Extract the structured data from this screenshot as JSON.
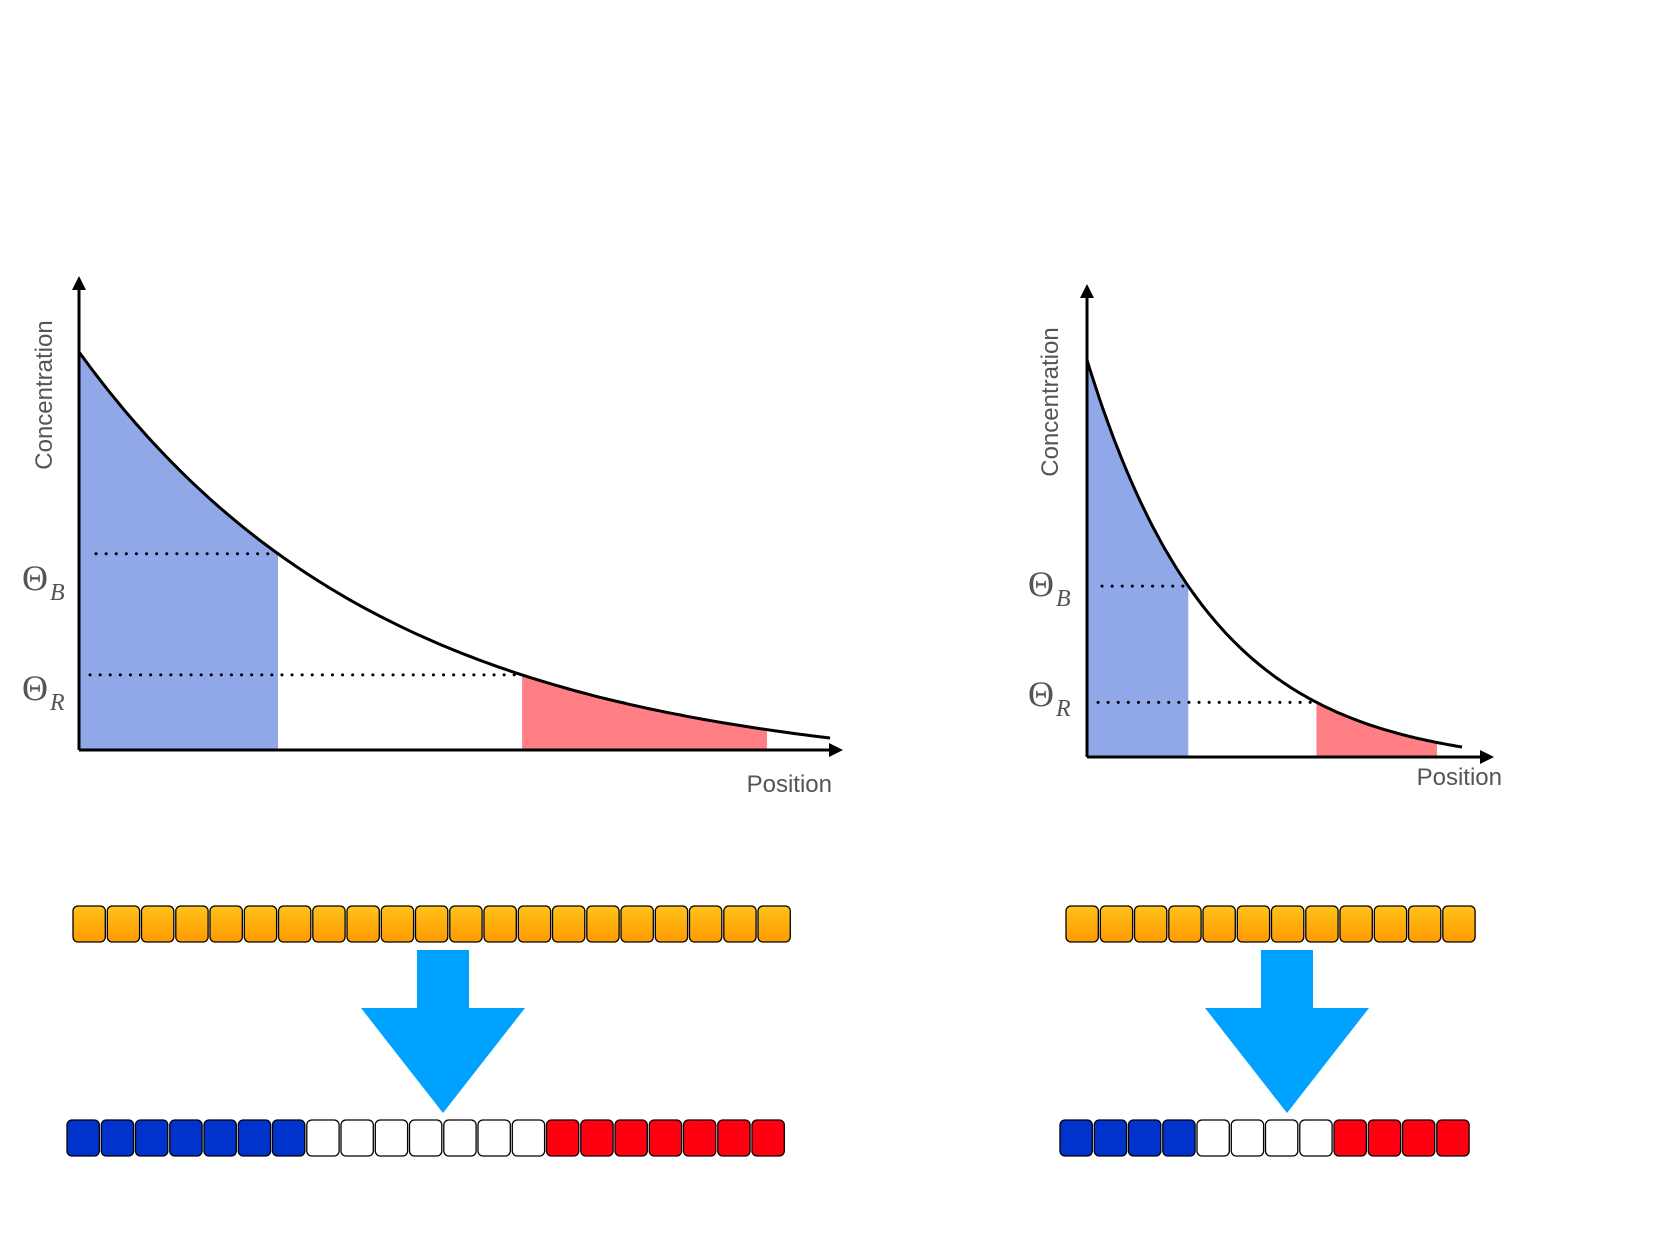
{
  "colors": {
    "blue_region": "#90A8E8",
    "red_region": "#FF7F85",
    "curve": "#000000",
    "axis": "#000000",
    "cell_orange": "#FFB400",
    "cell_blue": "#0033CC",
    "cell_white": "#FFFFFF",
    "cell_red": "#FF0010",
    "arrow": "#00A2FF"
  },
  "left_panel": {
    "y_axis_label": "Concentration",
    "x_axis_label": "Position",
    "threshold_b": {
      "symbol": "Θ",
      "subscript": "B"
    },
    "threshold_r": {
      "symbol": "Θ",
      "subscript": "R"
    },
    "top_row": {
      "count": 21,
      "state": "orange"
    },
    "bottom_row": {
      "blue": 7,
      "white": 7,
      "red": 7
    },
    "arrow_icon": "down-arrow-icon"
  },
  "right_panel": {
    "y_axis_label": "Concentration",
    "x_axis_label": "Position",
    "threshold_b": {
      "symbol": "Θ",
      "subscript": "B"
    },
    "threshold_r": {
      "symbol": "Θ",
      "subscript": "R"
    },
    "top_row": {
      "count": 12,
      "state": "orange"
    },
    "bottom_row": {
      "blue": 4,
      "white": 4,
      "red": 4
    },
    "arrow_icon": "down-arrow-icon"
  }
}
